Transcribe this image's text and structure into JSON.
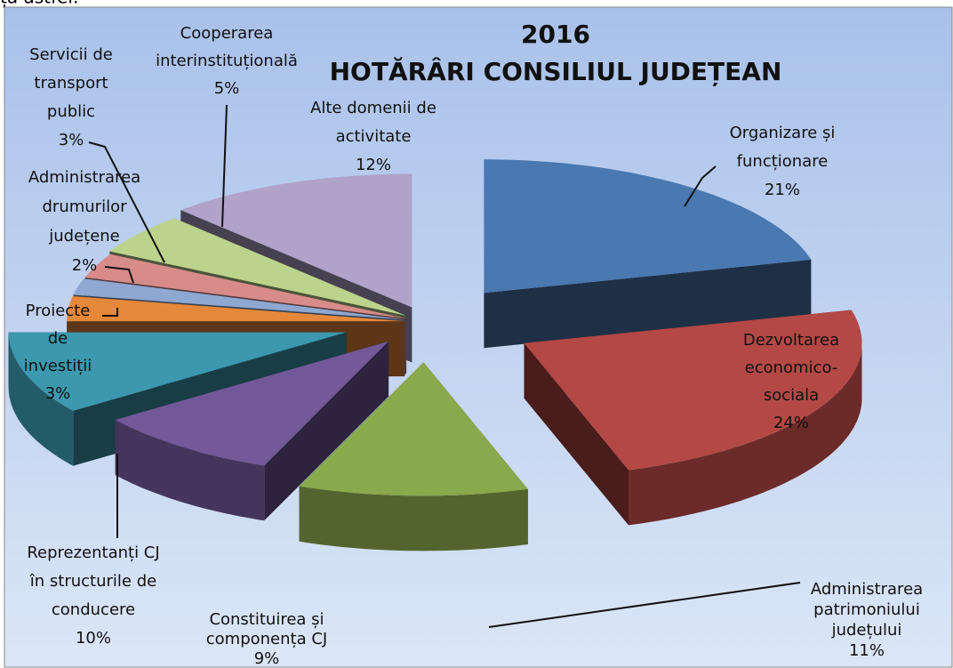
{
  "page_text": "ța astfel:",
  "chart_data": {
    "type": "pie3d",
    "title": [
      "2016",
      "HOTĂRÂRI CONSILIUL JUDEȚEAN"
    ],
    "categories": [
      [
        "Organizare și",
        "funcționare"
      ],
      [
        "Dezvoltarea",
        "economico-",
        "sociala"
      ],
      [
        "Administrarea",
        "patrimoniului",
        "județului"
      ],
      [
        "Constituirea și",
        "componența CJ"
      ],
      [
        "Reprezentanți CJ",
        "în structurile de",
        "conducere"
      ],
      [
        "Proiecte",
        "de",
        "investiții"
      ],
      [
        "Administrarea",
        "drumurilor",
        "județene"
      ],
      [
        "Servicii de",
        "transport",
        "public"
      ],
      [
        "Cooperarea",
        "interinstituțională"
      ],
      [
        "Alte domenii de",
        "activitate"
      ]
    ],
    "values": [
      21,
      24,
      11,
      9,
      10,
      3,
      2,
      3,
      5,
      12
    ],
    "value_labels": [
      "21%",
      "24%",
      "11%",
      "9%",
      "10%",
      "3%",
      "2%",
      "3%",
      "5%",
      "12%"
    ],
    "colors": [
      "#4a78b0",
      "#b44845",
      "#8aa84c",
      "#73589a",
      "#3c98ae",
      "#e5883a",
      "#8ea8d2",
      "#d78c8a",
      "#bcd38c",
      "#b0a2c9"
    ]
  }
}
